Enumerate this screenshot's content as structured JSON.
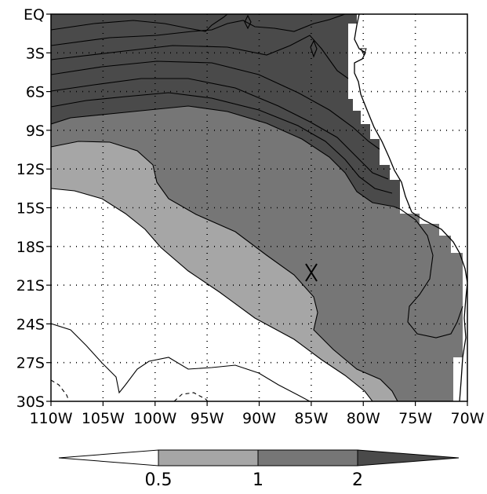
{
  "map": {
    "type": "contour-map",
    "region": {
      "lon_range": [
        -110,
        -70
      ],
      "lat_range": [
        -30,
        0
      ]
    },
    "grid": "dotted",
    "marker": {
      "symbol": "X",
      "lon": -85,
      "lat": -20
    },
    "x_tick_labels": [
      "110W",
      "105W",
      "100W",
      "95W",
      "90W",
      "85W",
      "80W",
      "75W",
      "70W"
    ],
    "y_tick_labels": [
      "EQ",
      "3S",
      "6S",
      "9S",
      "12S",
      "15S",
      "18S",
      "21S",
      "24S",
      "27S",
      "30S"
    ],
    "shading_colors": {
      "below_0.5": "#ffffff",
      "0.5_to_1": "#a6a6a6",
      "1_to_2": "#767676",
      "above_2": "#4a4a4a",
      "land_mask": "#ffffff"
    }
  },
  "colorbar": {
    "labels": [
      "0.5",
      "1",
      "2"
    ],
    "colors": [
      "#ffffff",
      "#a6a6a6",
      "#767676",
      "#4a4a4a"
    ]
  }
}
